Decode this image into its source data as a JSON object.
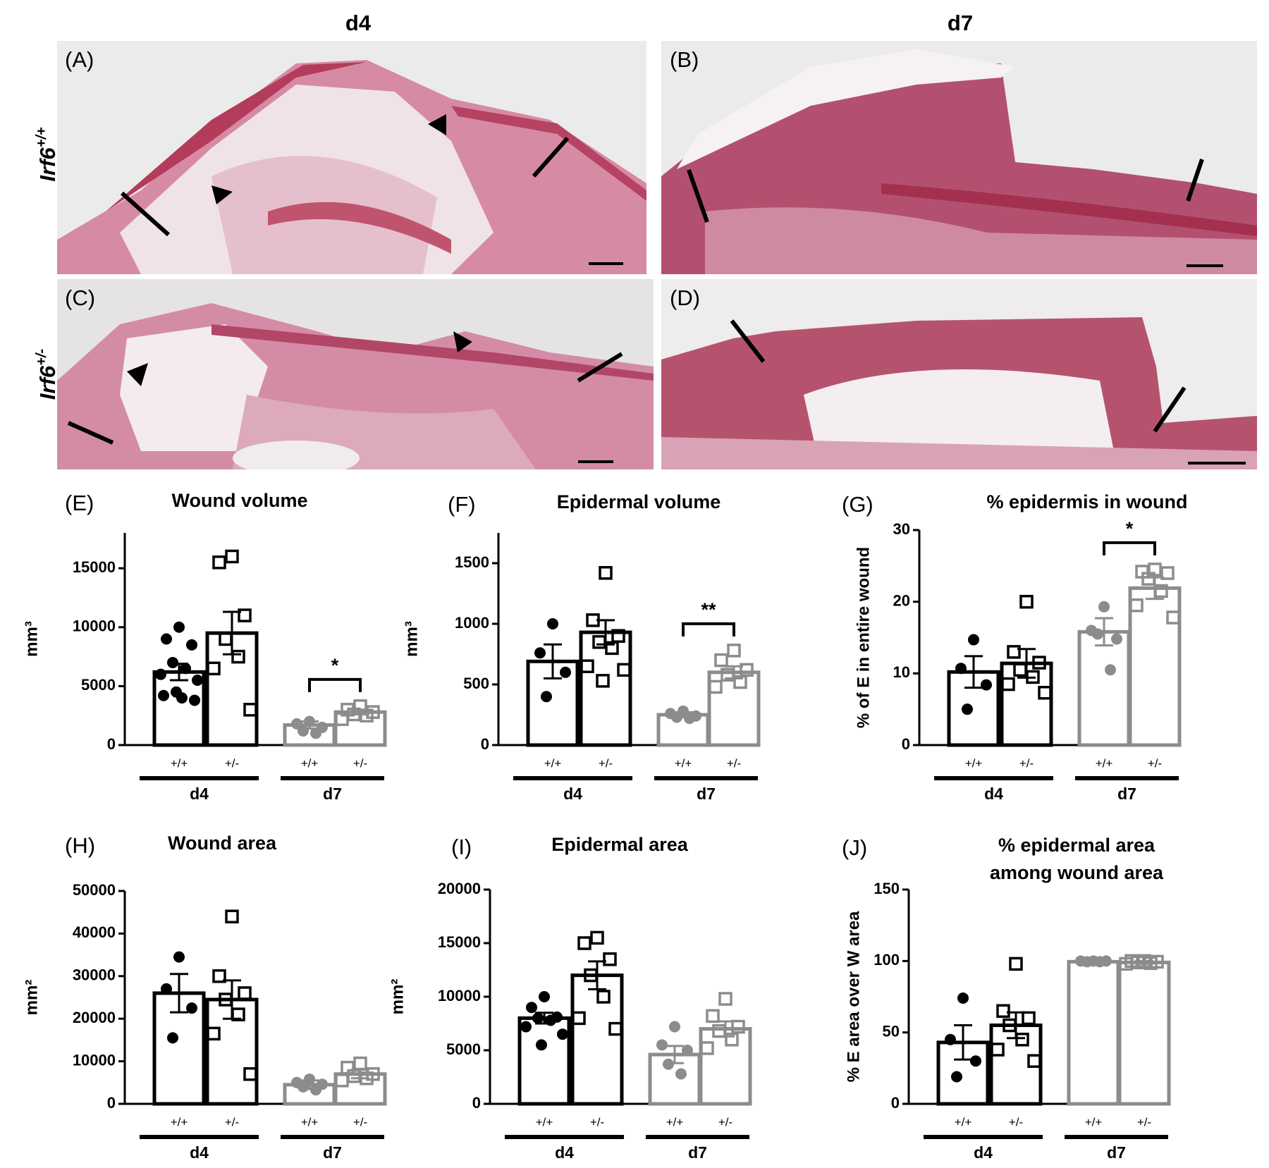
{
  "images": {
    "columns": [
      "d4",
      "d7"
    ],
    "rows": [
      {
        "gene": "Irf6",
        "genotype": "+/+"
      },
      {
        "gene": "Irf6",
        "genotype": "+/-"
      }
    ],
    "panels": [
      "(A)",
      "(B)",
      "(C)",
      "(D)"
    ]
  },
  "chart_data": [
    {
      "type": "bar",
      "panel": "(E)",
      "title": "Wound volume",
      "ylabel": "mm³",
      "categories": [
        "+/+",
        "+/-",
        "+/+",
        "+/-"
      ],
      "groups": [
        "d4",
        "d7"
      ],
      "colors": [
        "#000000",
        "#000000",
        "#8c8c8c",
        "#8c8c8c"
      ],
      "markers": [
        "circle",
        "square",
        "circle",
        "square"
      ],
      "values": [
        6200,
        9500,
        1700,
        2800
      ],
      "errors": [
        700,
        1800,
        300,
        200
      ],
      "points": [
        [
          10000,
          9000,
          8500,
          7000,
          6500,
          6000,
          5500,
          4500,
          4000,
          4200,
          3800
        ],
        [
          16000,
          15500,
          11000,
          9000,
          7500,
          6500,
          3000
        ],
        [
          2000,
          1800,
          1500,
          1200,
          1000
        ],
        [
          3300,
          3000,
          2800,
          2600,
          2500,
          2200
        ]
      ],
      "ylim": [
        0,
        18000
      ],
      "yticks": [
        0,
        5000,
        10000,
        15000
      ],
      "significance": "*"
    },
    {
      "type": "bar",
      "panel": "(F)",
      "title": "Epidermal volume",
      "ylabel": "mm³",
      "categories": [
        "+/+",
        "+/-",
        "+/+",
        "+/-"
      ],
      "groups": [
        "d4",
        "d7"
      ],
      "colors": [
        "#000000",
        "#000000",
        "#8c8c8c",
        "#8c8c8c"
      ],
      "markers": [
        "circle",
        "square",
        "circle",
        "square"
      ],
      "values": [
        690,
        930,
        250,
        600
      ],
      "errors": [
        140,
        100,
        20,
        50
      ],
      "points": [
        [
          1000,
          760,
          600,
          400
        ],
        [
          1420,
          1030,
          900,
          850,
          800,
          650,
          620,
          530
        ],
        [
          280,
          260,
          240,
          230,
          220
        ],
        [
          780,
          700,
          620,
          580,
          520,
          480
        ]
      ],
      "ylim": [
        0,
        1750
      ],
      "yticks": [
        0,
        500,
        1000,
        1500
      ],
      "significance": "**"
    },
    {
      "type": "bar",
      "panel": "(G)",
      "title": "% epidermis in wound",
      "ylabel": "% of E in entire wound",
      "categories": [
        "+/+",
        "+/-",
        "+/+",
        "+/-"
      ],
      "groups": [
        "d4",
        "d7"
      ],
      "colors": [
        "#000000",
        "#000000",
        "#8c8c8c",
        "#8c8c8c"
      ],
      "markers": [
        "circle",
        "square",
        "circle",
        "square"
      ],
      "values": [
        10.2,
        11.4,
        15.8,
        21.9
      ],
      "errors": [
        2.2,
        2,
        1.9,
        1.5
      ],
      "points": [
        [
          14.7,
          10.7,
          8.4,
          5
        ],
        [
          20,
          13,
          11.5,
          10.5,
          9.5,
          8.5,
          7.3
        ],
        [
          19.3,
          16,
          14.8,
          15.5,
          10.5
        ],
        [
          24.5,
          24.2,
          24,
          23.2,
          21.5,
          19.5,
          17.8
        ]
      ],
      "ylim": [
        0,
        30
      ],
      "yticks": [
        0,
        10,
        20,
        30
      ],
      "significance": "*"
    },
    {
      "type": "bar",
      "panel": "(H)",
      "title": "Wound area",
      "ylabel": "mm²",
      "categories": [
        "+/+",
        "+/-",
        "+/+",
        "+/-"
      ],
      "groups": [
        "d4",
        "d7"
      ],
      "colors": [
        "#000000",
        "#000000",
        "#8c8c8c",
        "#8c8c8c"
      ],
      "markers": [
        "circle",
        "square",
        "circle",
        "square"
      ],
      "values": [
        26000,
        24500,
        4500,
        7000
      ],
      "errors": [
        4500,
        4500,
        1000,
        1000
      ],
      "points": [
        [
          34500,
          27000,
          22500,
          15500
        ],
        [
          44000,
          30000,
          26000,
          24500,
          21000,
          16500,
          7000
        ],
        [
          5800,
          5000,
          4600,
          4000,
          3300
        ],
        [
          9500,
          8500,
          7000,
          6500,
          6000,
          5500
        ]
      ],
      "ylim": [
        0,
        50000
      ],
      "yticks": [
        0,
        10000,
        20000,
        30000,
        40000,
        50000
      ]
    },
    {
      "type": "bar",
      "panel": "(I)",
      "title": "Epidermal area",
      "ylabel": "mm²",
      "categories": [
        "+/+",
        "+/-",
        "+/+",
        "+/-"
      ],
      "groups": [
        "d4",
        "d7"
      ],
      "colors": [
        "#000000",
        "#000000",
        "#8c8c8c",
        "#8c8c8c"
      ],
      "markers": [
        "circle",
        "square",
        "circle",
        "square"
      ],
      "values": [
        8000,
        12000,
        4600,
        7000
      ],
      "errors": [
        500,
        1300,
        800,
        700
      ],
      "points": [
        [
          10000,
          9000,
          8100,
          8000,
          7800,
          7200,
          6500,
          5500
        ],
        [
          15500,
          15000,
          13500,
          12000,
          10000,
          8000,
          7000
        ],
        [
          7200,
          5500,
          5000,
          3700,
          2800
        ],
        [
          9800,
          8200,
          7200,
          6800,
          6000,
          5200
        ]
      ],
      "ylim": [
        0,
        20000
      ],
      "yticks": [
        0,
        5000,
        10000,
        15000,
        20000
      ]
    },
    {
      "type": "bar",
      "panel": "(J)",
      "title": [
        "% epidermal area",
        "among wound area"
      ],
      "ylabel": "% E area over W area",
      "categories": [
        "+/+",
        "+/-",
        "+/+",
        "+/-"
      ],
      "groups": [
        "d4",
        "d7"
      ],
      "colors": [
        "#000000",
        "#000000",
        "#8c8c8c",
        "#8c8c8c"
      ],
      "markers": [
        "circle",
        "square",
        "circle",
        "square"
      ],
      "values": [
        43,
        55,
        99.5,
        99
      ],
      "errors": [
        12,
        9,
        0.5,
        1
      ],
      "points": [
        [
          74,
          45,
          30,
          19
        ],
        [
          98,
          65,
          60,
          55,
          45,
          38,
          30
        ],
        [
          100,
          100,
          100,
          99.5,
          99.5
        ],
        [
          100,
          100,
          99.5,
          99,
          98.5,
          98
        ]
      ],
      "ylim": [
        0,
        150
      ],
      "yticks": [
        0,
        50,
        100,
        150
      ]
    }
  ]
}
